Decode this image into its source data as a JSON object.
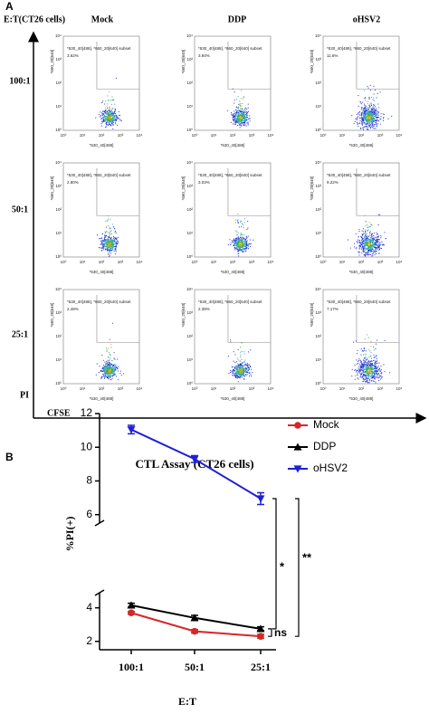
{
  "panel_a": {
    "label": "A",
    "corner_title": "E:T(CT26 cells)",
    "columns": [
      "Mock",
      "DDP",
      "oHSV2"
    ],
    "rows": [
      "100:1",
      "50:1",
      "25:1"
    ],
    "y_axis": "PI",
    "x_axis": "CFSE",
    "plot_x_label": "*530_40[488]",
    "plot_y_label": "*660_20[640]",
    "gate_label": "*530_40[488], *660_20[640] subset",
    "tick_labels": [
      "10⁰",
      "10¹",
      "10²",
      "10³",
      "10⁴"
    ],
    "percents": [
      [
        "3.62%",
        "3.94%",
        "11.6%"
      ],
      [
        "2.80%",
        "3.03%",
        "9.22%"
      ],
      [
        "2.48%",
        "2.39%",
        "7.17%"
      ]
    ]
  },
  "chart_data": {
    "type": "line",
    "label": "B",
    "title": "CTL Assay (CT26 cells)",
    "x_label": "E:T",
    "y_label": "%PI(+)",
    "categories": [
      "100:1",
      "50:1",
      "25:1"
    ],
    "ylim": [
      1.5,
      12
    ],
    "y_break": [
      4.9,
      5.5
    ],
    "yticks": [
      2,
      4,
      6,
      8,
      10,
      12
    ],
    "series": [
      {
        "name": "Mock",
        "color": "#d62728",
        "marker": "circle",
        "values": [
          3.7,
          2.6,
          2.3
        ],
        "errors": [
          0.08,
          0.1,
          0.12
        ]
      },
      {
        "name": "DDP",
        "color": "#000000",
        "marker": "triangle-up",
        "values": [
          4.15,
          3.4,
          2.75
        ],
        "errors": [
          0.12,
          0.15,
          0.12
        ]
      },
      {
        "name": "oHSV2",
        "color": "#1f1fd6",
        "marker": "triangle-down",
        "values": [
          11.05,
          9.3,
          6.95
        ],
        "errors": [
          0.25,
          0.2,
          0.35
        ]
      }
    ],
    "annotations": [
      "ns",
      "*",
      "**"
    ]
  }
}
